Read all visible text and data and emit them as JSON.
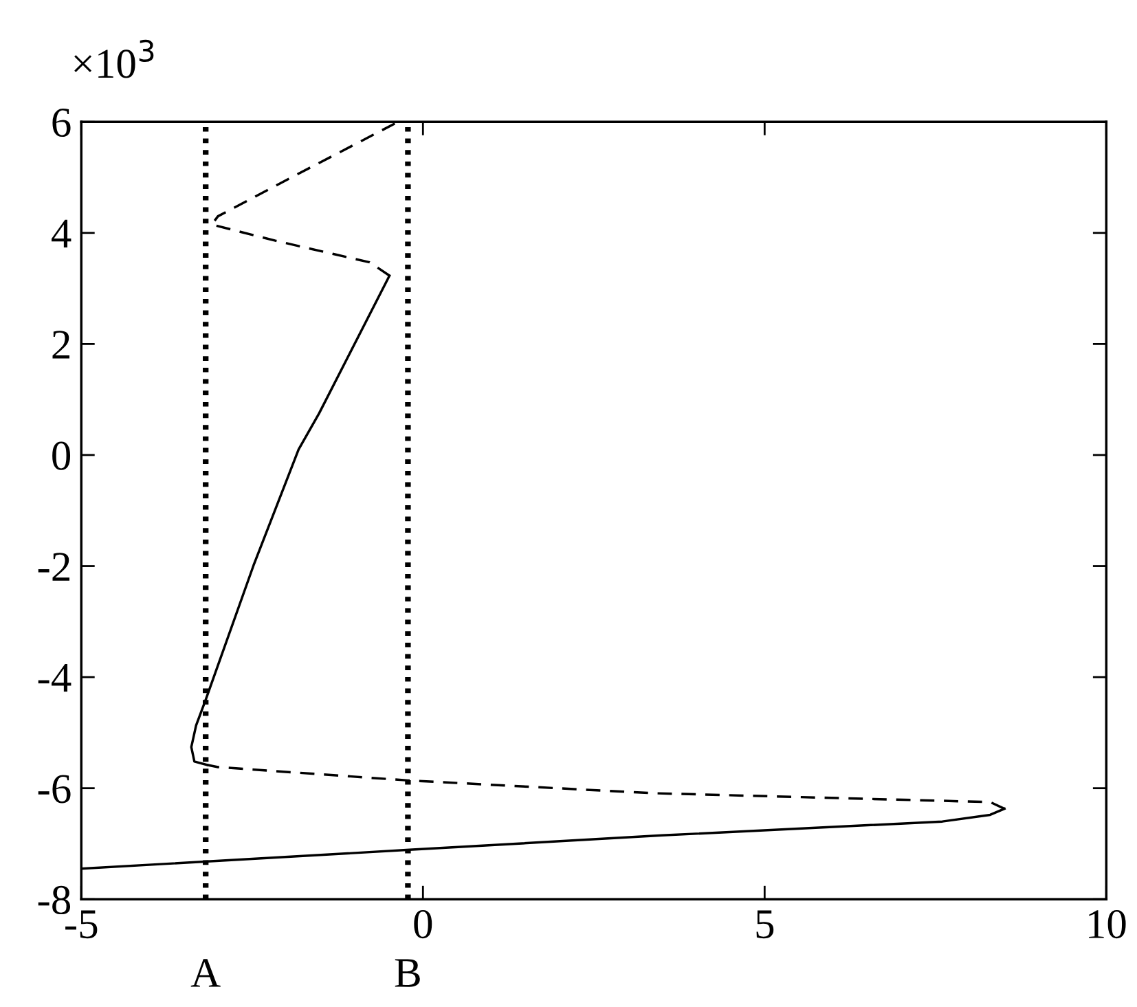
{
  "chart_data": {
    "type": "line",
    "series": [
      {
        "color": "#000000",
        "line_style": "solid",
        "x": [
          -5,
          -0.2,
          3.5,
          7.6,
          8.3,
          8.51
        ],
        "values": [
          -7.45,
          -7.11,
          -6.85,
          -6.6,
          -6.48,
          -6.37
        ]
      },
      {
        "color": "#000000",
        "line_style": "dashed",
        "x": [
          8.51,
          8.3,
          3.36,
          -0.22,
          -3.0,
          -3.16
        ],
        "values": [
          -6.37,
          -6.25,
          -6.09,
          -5.86,
          -5.62,
          -5.58
        ]
      },
      {
        "color": "#000000",
        "line_style": "solid",
        "x": [
          -3.16,
          -3.345,
          -3.39,
          -3.32,
          -3.18,
          -2.48,
          -1.82,
          -1.52,
          -0.49
        ],
        "values": [
          -5.58,
          -5.52,
          -5.26,
          -4.87,
          -4.41,
          -1.99,
          0.1,
          0.75,
          3.23
        ]
      },
      {
        "color": "#000000",
        "line_style": "dashed",
        "x": [
          -0.49,
          -0.78,
          -1.31,
          -2.16,
          -3.09,
          -3.0,
          -1.94,
          -0.41
        ],
        "values": [
          3.23,
          3.47,
          3.62,
          3.86,
          4.15,
          4.3,
          4.99,
          5.97
        ]
      }
    ],
    "xlim": [
      -5,
      10
    ],
    "xticks": [
      -5,
      0,
      5,
      10
    ],
    "ylim": [
      -8,
      6
    ],
    "yticks": [
      -8,
      -6,
      -4,
      -2,
      0,
      2,
      4,
      6
    ],
    "ref_lines": [
      {
        "axis": "x",
        "value": -3.18,
        "label": "A",
        "color": "#000000",
        "line_style": "dotted"
      },
      {
        "axis": "x",
        "value": -0.22,
        "label": "B",
        "color": "#000000",
        "line_style": "dotted"
      }
    ],
    "annotations": [
      "×10$^{3}$"
    ],
    "grid": false
  }
}
